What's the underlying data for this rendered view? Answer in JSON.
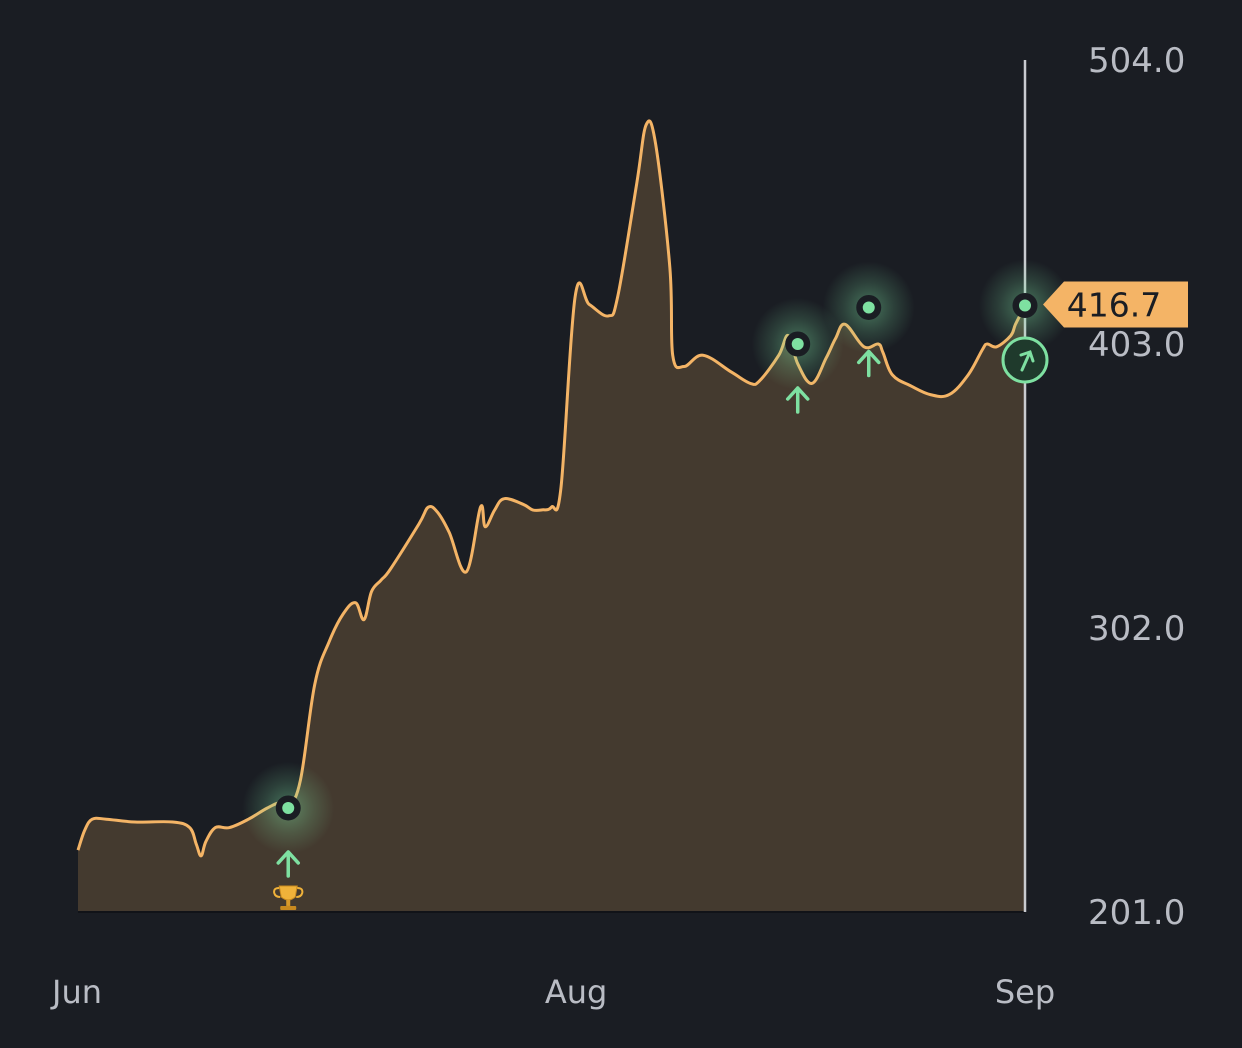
{
  "chart_data": {
    "type": "area",
    "colors": {
      "background": "#1a1d23",
      "line": "#f4b466",
      "fill": "#443a2f",
      "marker": "#7ee0a1",
      "price_tag": "#f4b466",
      "axis_line": "#c9cbd0",
      "tick_text": "#b9bcc4"
    },
    "x_ticks": [
      "Jun",
      "Aug",
      "Sep"
    ],
    "x_tick_positions": [
      0,
      0.526,
      1
    ],
    "y_ticks": [
      "504.0",
      "403.0",
      "302.0",
      "201.0"
    ],
    "y_tick_values": [
      504,
      403,
      302,
      201
    ],
    "ylim": [
      201,
      504
    ],
    "current_value": "416.7",
    "series": [
      {
        "points": [
          [
            0,
            223
          ],
          [
            0.007,
            230
          ],
          [
            0.015,
            234
          ],
          [
            0.03,
            234
          ],
          [
            0.06,
            233
          ],
          [
            0.1,
            233
          ],
          [
            0.118,
            231
          ],
          [
            0.125,
            225
          ],
          [
            0.13,
            221
          ],
          [
            0.135,
            226
          ],
          [
            0.145,
            231
          ],
          [
            0.16,
            231
          ],
          [
            0.18,
            234
          ],
          [
            0.2,
            238
          ],
          [
            0.215,
            240
          ],
          [
            0.222,
            238
          ],
          [
            0.235,
            248
          ],
          [
            0.25,
            282
          ],
          [
            0.265,
            297
          ],
          [
            0.28,
            307
          ],
          [
            0.293,
            311
          ],
          [
            0.302,
            305
          ],
          [
            0.31,
            315
          ],
          [
            0.32,
            319
          ],
          [
            0.33,
            323
          ],
          [
            0.36,
            339
          ],
          [
            0.37,
            345
          ],
          [
            0.38,
            343
          ],
          [
            0.392,
            336
          ],
          [
            0.41,
            322
          ],
          [
            0.425,
            345
          ],
          [
            0.43,
            338
          ],
          [
            0.44,
            344
          ],
          [
            0.45,
            348
          ],
          [
            0.47,
            346
          ],
          [
            0.48,
            344
          ],
          [
            0.49,
            344
          ],
          [
            0.5,
            345
          ],
          [
            0.51,
            352
          ],
          [
            0.525,
            420
          ],
          [
            0.54,
            417
          ],
          [
            0.56,
            413
          ],
          [
            0.57,
            420
          ],
          [
            0.59,
            460
          ],
          [
            0.6,
            481
          ],
          [
            0.61,
            474
          ],
          [
            0.625,
            430
          ],
          [
            0.628,
            399
          ],
          [
            0.64,
            395
          ],
          [
            0.66,
            399
          ],
          [
            0.69,
            393
          ],
          [
            0.71,
            389
          ],
          [
            0.72,
            390
          ],
          [
            0.74,
            399
          ],
          [
            0.75,
            406
          ],
          [
            0.76,
            396
          ],
          [
            0.775,
            389
          ],
          [
            0.79,
            398
          ],
          [
            0.8,
            405
          ],
          [
            0.81,
            410
          ],
          [
            0.83,
            402
          ],
          [
            0.845,
            403
          ],
          [
            0.85,
            400
          ],
          [
            0.86,
            392
          ],
          [
            0.88,
            388
          ],
          [
            0.9,
            385
          ],
          [
            0.92,
            385
          ],
          [
            0.94,
            392
          ],
          [
            0.955,
            401
          ],
          [
            0.96,
            403
          ],
          [
            0.97,
            402
          ],
          [
            0.985,
            406
          ],
          [
            0.99,
            410
          ],
          [
            1,
            416.7
          ]
        ]
      }
    ],
    "markers": [
      {
        "x": 0.222,
        "y": 238,
        "arrow": true,
        "trophy": true
      },
      {
        "x": 0.76,
        "y": 403,
        "arrow": true,
        "trophy": false
      },
      {
        "x": 0.835,
        "y": 416,
        "arrow": true,
        "trophy": false
      },
      {
        "x": 1,
        "y": 416.7,
        "arrow": false,
        "trophy": false
      }
    ]
  }
}
